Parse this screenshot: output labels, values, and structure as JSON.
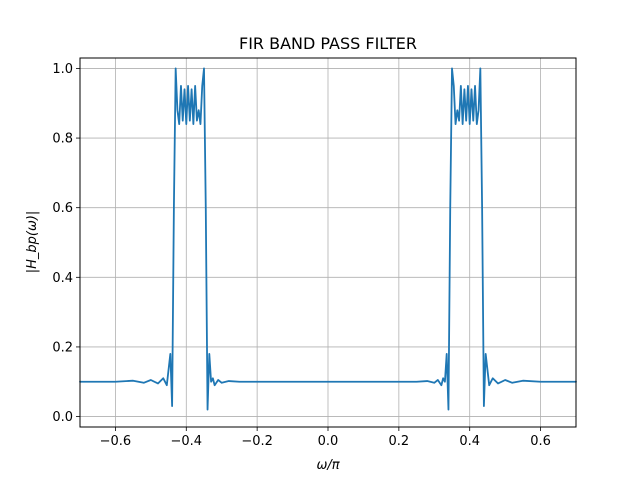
{
  "chart_data": {
    "type": "line",
    "title": "FIR BAND PASS FILTER",
    "xlabel": "ω/π",
    "ylabel": "|H_bp(ω)|",
    "xlim": [
      -0.7,
      0.7
    ],
    "ylim": [
      -0.03,
      1.03
    ],
    "xticks": [
      -0.6,
      -0.4,
      -0.2,
      0.0,
      0.2,
      0.4,
      0.6
    ],
    "xtick_labels": [
      "−0.6",
      "−0.4",
      "−0.2",
      "0.0",
      "0.2",
      "0.4",
      "0.6"
    ],
    "yticks": [
      0.0,
      0.2,
      0.4,
      0.6,
      0.8,
      1.0
    ],
    "ytick_labels": [
      "0.0",
      "0.2",
      "0.4",
      "0.6",
      "0.8",
      "1.0"
    ],
    "grid": true,
    "line_color": "#1f77b4",
    "series": [
      {
        "x": [
          -0.7,
          -0.6,
          -0.55,
          -0.52,
          -0.5,
          -0.48,
          -0.465,
          -0.455,
          -0.445,
          -0.44,
          -0.435,
          -0.43,
          -0.425,
          -0.42,
          -0.415,
          -0.41,
          -0.405,
          -0.4,
          -0.395,
          -0.39,
          -0.385,
          -0.38,
          -0.375,
          -0.37,
          -0.365,
          -0.36,
          -0.355,
          -0.35,
          -0.345,
          -0.34,
          -0.335,
          -0.33,
          -0.325,
          -0.32,
          -0.31,
          -0.3,
          -0.28,
          -0.25,
          -0.2,
          -0.1,
          0.0,
          0.1,
          0.2,
          0.25,
          0.28,
          0.3,
          0.31,
          0.32,
          0.325,
          0.33,
          0.335,
          0.34,
          0.345,
          0.35,
          0.355,
          0.36,
          0.365,
          0.37,
          0.375,
          0.38,
          0.385,
          0.39,
          0.395,
          0.4,
          0.405,
          0.41,
          0.415,
          0.42,
          0.425,
          0.43,
          0.435,
          0.44,
          0.445,
          0.455,
          0.465,
          0.48,
          0.5,
          0.52,
          0.55,
          0.6,
          0.7
        ],
        "y": [
          0.1,
          0.1,
          0.103,
          0.097,
          0.105,
          0.095,
          0.11,
          0.09,
          0.18,
          0.03,
          0.6,
          1.0,
          0.88,
          0.84,
          0.95,
          0.85,
          0.94,
          0.84,
          0.95,
          0.85,
          0.94,
          0.84,
          0.95,
          0.85,
          0.88,
          0.84,
          0.95,
          1.0,
          0.6,
          0.02,
          0.18,
          0.1,
          0.11,
          0.09,
          0.105,
          0.097,
          0.102,
          0.1,
          0.1,
          0.1,
          0.1,
          0.1,
          0.1,
          0.1,
          0.102,
          0.097,
          0.105,
          0.09,
          0.11,
          0.1,
          0.18,
          0.02,
          0.6,
          1.0,
          0.95,
          0.84,
          0.88,
          0.85,
          0.95,
          0.84,
          0.94,
          0.85,
          0.95,
          0.84,
          0.94,
          0.85,
          0.95,
          0.84,
          0.88,
          1.0,
          0.6,
          0.03,
          0.18,
          0.09,
          0.11,
          0.095,
          0.105,
          0.097,
          0.103,
          0.1,
          0.1
        ]
      }
    ]
  }
}
